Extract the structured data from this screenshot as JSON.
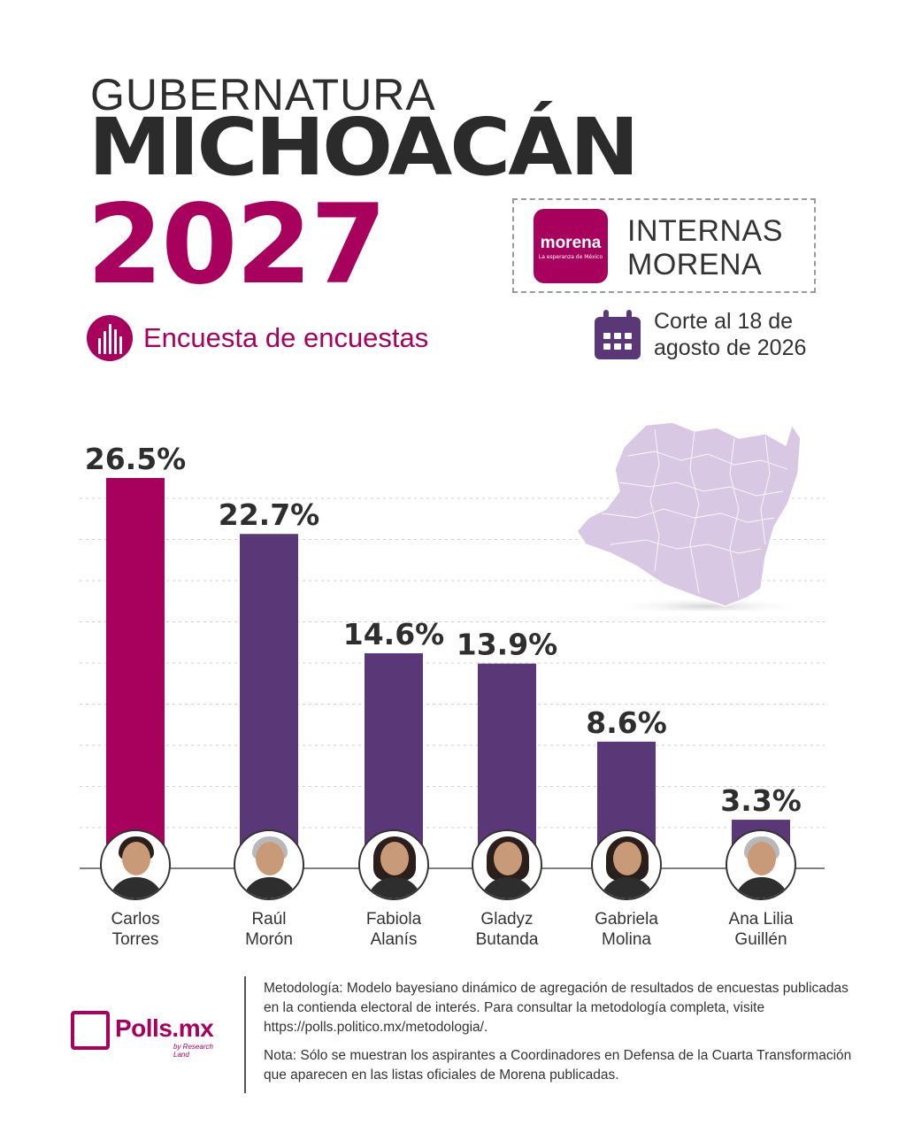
{
  "header": {
    "title_top": "GUBERNATURA",
    "title_main": "MICHOACÁN",
    "title_year": "2027",
    "badge_logo_word": "morena",
    "badge_logo_sub": "La esperanza de México",
    "badge_line1": "INTERNAS",
    "badge_line2": "MORENA",
    "survey_label": "Encuesta de encuestas",
    "date_line1": "Corte al 18 de",
    "date_line2": "agosto de 2026"
  },
  "colors": {
    "leader": "#a8005d",
    "others": "#5a3878",
    "map": "#d8c8e4",
    "grid": "#cfcfcf"
  },
  "chart_data": {
    "type": "bar",
    "categories": [
      "Carlos Torres",
      "Raúl Morón",
      "Fabiola Alanís",
      "Gladyz Butanda",
      "Gabriela Molina",
      "Ana Lilia Guillén"
    ],
    "values": [
      26.5,
      22.7,
      14.6,
      13.9,
      8.6,
      3.3
    ],
    "labels": [
      "26.5%",
      "22.7%",
      "14.6%",
      "13.9%",
      "8.6%",
      "3.3%"
    ],
    "title": "",
    "xlabel": "",
    "ylabel": "",
    "ylim": [
      0,
      30
    ],
    "grid": true,
    "highlight_index": 0
  },
  "candidates": [
    {
      "line1": "Carlos",
      "line2": "Torres",
      "hair": "dark"
    },
    {
      "line1": "Raúl",
      "line2": "Morón",
      "hair": "grey"
    },
    {
      "line1": "Fabiola",
      "line2": "Alanís",
      "hair": "dark-long"
    },
    {
      "line1": "Gladyz",
      "line2": "Butanda",
      "hair": "dark-long"
    },
    {
      "line1": "Gabriela",
      "line2": "Molina",
      "hair": "dark-long"
    },
    {
      "line1": "Ana Lilia",
      "line2": "Guillén",
      "hair": "grey"
    }
  ],
  "footer": {
    "logo_text": "Polls.mx",
    "logo_sub": "by Research Land",
    "methodology": "Metodología: Modelo bayesiano dinámico de agregación de resultados de encuestas publicadas en la contienda electoral de interés. Para consultar la metodología completa, visite https://polls.politico.mx/metodologia/.",
    "note": "Nota: Sólo se muestran los aspirantes a Coordinadores en Defensa de la Cuarta Transformación que aparecen en las listas oficiales de Morena publicadas."
  }
}
